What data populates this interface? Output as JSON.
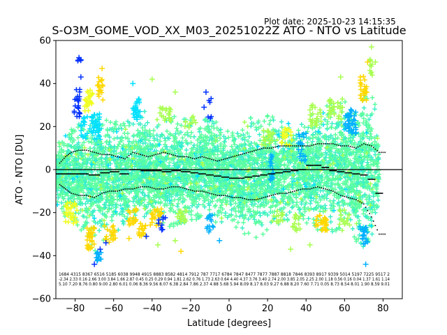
{
  "plot_date": "Plot date: 2025-10-23 14:15:35",
  "chart_data": {
    "type": "scatter",
    "title": "S-O3M_GOME_VOD_XX_M03_20251022Z ATO - NTO vs Latitude",
    "xlabel": "Latitude [degrees]",
    "ylabel": "ATO - NTO [DU]",
    "xlim": [
      -90,
      90
    ],
    "ylim": [
      -60,
      60
    ],
    "xticks": [
      -80,
      -60,
      -40,
      -20,
      0,
      20,
      40,
      60,
      80
    ],
    "yticks": [
      -60,
      -40,
      -20,
      0,
      20,
      40,
      60
    ],
    "xtick_labels": [
      "−80",
      "−60",
      "−40",
      "−20",
      "0",
      "20",
      "40",
      "60",
      "80"
    ],
    "ytick_labels": [
      "−60",
      "−40",
      "−20",
      "0",
      "20",
      "40",
      "60"
    ],
    "zero_line": 0,
    "grid": false,
    "colors": {
      "dense": "#5cffa0",
      "mid": "#3cf0c8",
      "cyan": "#00e0ff",
      "blue_light": "#00b0ff",
      "blue": "#0030ff",
      "yellow": "#f0ff20",
      "gold": "#ffd800",
      "lime": "#a8ff50",
      "mean": "#000000"
    },
    "envelope": [
      {
        "lat": -90,
        "top": 12,
        "bottom": -17
      },
      {
        "lat": -85,
        "top": 17,
        "bottom": -22
      },
      {
        "lat": -80,
        "top": 22,
        "bottom": -26
      },
      {
        "lat": -75,
        "top": 20,
        "bottom": -30
      },
      {
        "lat": -70,
        "top": 26,
        "bottom": -38
      },
      {
        "lat": -65,
        "top": 25,
        "bottom": -35
      },
      {
        "lat": -60,
        "top": 22,
        "bottom": -30
      },
      {
        "lat": -55,
        "top": 24,
        "bottom": -28
      },
      {
        "lat": -50,
        "top": 22,
        "bottom": -25
      },
      {
        "lat": -45,
        "top": 28,
        "bottom": -27
      },
      {
        "lat": -40,
        "top": 24,
        "bottom": -25
      },
      {
        "lat": -35,
        "top": 23,
        "bottom": -26
      },
      {
        "lat": -30,
        "top": 25,
        "bottom": -27
      },
      {
        "lat": -25,
        "top": 24,
        "bottom": -26
      },
      {
        "lat": -20,
        "top": 23,
        "bottom": -24
      },
      {
        "lat": -15,
        "top": 25,
        "bottom": -25
      },
      {
        "lat": -10,
        "top": 24,
        "bottom": -24
      },
      {
        "lat": -5,
        "top": 23,
        "bottom": -25
      },
      {
        "lat": 0,
        "top": 17,
        "bottom": -25
      },
      {
        "lat": 5,
        "top": 22,
        "bottom": -28
      },
      {
        "lat": 10,
        "top": 24,
        "bottom": -32
      },
      {
        "lat": 15,
        "top": 24,
        "bottom": -33
      },
      {
        "lat": 20,
        "top": 26,
        "bottom": -28
      },
      {
        "lat": 25,
        "top": 25,
        "bottom": -28
      },
      {
        "lat": 30,
        "top": 22,
        "bottom": -25
      },
      {
        "lat": 35,
        "top": 20,
        "bottom": -22
      },
      {
        "lat": 40,
        "top": 22,
        "bottom": -25
      },
      {
        "lat": 45,
        "top": 30,
        "bottom": -28
      },
      {
        "lat": 50,
        "top": 32,
        "bottom": -30
      },
      {
        "lat": 55,
        "top": 30,
        "bottom": -30
      },
      {
        "lat": 60,
        "top": 32,
        "bottom": -28
      },
      {
        "lat": 65,
        "top": 28,
        "bottom": -32
      },
      {
        "lat": 70,
        "top": 35,
        "bottom": -38
      },
      {
        "lat": 73,
        "top": 40,
        "bottom": -42
      },
      {
        "lat": 76,
        "top": 30,
        "bottom": -35
      },
      {
        "lat": 78,
        "top": 10,
        "bottom": -10
      }
    ],
    "highlight_clusters": [
      {
        "x": -79,
        "y": 30,
        "w": 3,
        "h": 18,
        "color": "blue",
        "n": 22
      },
      {
        "x": -78,
        "y": 51,
        "w": 2,
        "h": 2,
        "color": "blue",
        "n": 4
      },
      {
        "x": -73,
        "y": 32,
        "w": 4,
        "h": 10,
        "color": "yellow",
        "n": 25
      },
      {
        "x": -67,
        "y": 38,
        "w": 3,
        "h": 12,
        "color": "gold",
        "n": 18
      },
      {
        "x": -72,
        "y": 20,
        "w": 10,
        "h": 12,
        "color": "cyan",
        "n": 60
      },
      {
        "x": -48,
        "y": 28,
        "w": 4,
        "h": 10,
        "color": "cyan",
        "n": 30
      },
      {
        "x": -33,
        "y": 25,
        "w": 6,
        "h": 8,
        "color": "lime",
        "n": 20
      },
      {
        "x": -20,
        "y": 22,
        "w": 6,
        "h": 6,
        "color": "lime",
        "n": 12
      },
      {
        "x": -10,
        "y": 28,
        "w": 2,
        "h": 10,
        "color": "blue",
        "n": 6
      },
      {
        "x": 20,
        "y": 15,
        "w": 6,
        "h": 8,
        "color": "lime",
        "n": 20
      },
      {
        "x": 22,
        "y": 0,
        "w": 2,
        "h": 14,
        "color": "blue_light",
        "n": 15
      },
      {
        "x": 30,
        "y": 15,
        "w": 6,
        "h": 8,
        "color": "yellow",
        "n": 20
      },
      {
        "x": 38,
        "y": 10,
        "w": 4,
        "h": 14,
        "color": "blue_light",
        "n": 20
      },
      {
        "x": 45,
        "y": 25,
        "w": 6,
        "h": 10,
        "color": "lime",
        "n": 30
      },
      {
        "x": 55,
        "y": 28,
        "w": 8,
        "h": 10,
        "color": "lime",
        "n": 30
      },
      {
        "x": 63,
        "y": 22,
        "w": 6,
        "h": 12,
        "color": "blue_light",
        "n": 40
      },
      {
        "x": 70,
        "y": 38,
        "w": 4,
        "h": 12,
        "color": "gold",
        "n": 25
      },
      {
        "x": 73,
        "y": 48,
        "w": 3,
        "h": 10,
        "color": "lime",
        "n": 10
      },
      {
        "x": -82,
        "y": -20,
        "w": 6,
        "h": 10,
        "color": "yellow",
        "n": 30
      },
      {
        "x": -72,
        "y": -32,
        "w": 4,
        "h": 10,
        "color": "gold",
        "n": 30
      },
      {
        "x": -68,
        "y": -40,
        "w": 3,
        "h": 6,
        "color": "blue_light",
        "n": 15
      },
      {
        "x": -62,
        "y": -30,
        "w": 6,
        "h": 8,
        "color": "gold",
        "n": 20
      },
      {
        "x": -50,
        "y": -22,
        "w": 6,
        "h": 8,
        "color": "gold",
        "n": 20
      },
      {
        "x": -45,
        "y": -28,
        "w": 4,
        "h": 6,
        "color": "gold",
        "n": 18
      },
      {
        "x": -38,
        "y": -22,
        "w": 6,
        "h": 8,
        "color": "gold",
        "n": 25
      },
      {
        "x": -35,
        "y": -25,
        "w": 4,
        "h": 6,
        "color": "blue",
        "n": 8
      },
      {
        "x": -25,
        "y": -22,
        "w": 6,
        "h": 6,
        "color": "lime",
        "n": 20
      },
      {
        "x": -10,
        "y": -25,
        "w": 4,
        "h": 8,
        "color": "blue_light",
        "n": 15
      },
      {
        "x": 25,
        "y": -22,
        "w": 6,
        "h": 6,
        "color": "lime",
        "n": 15
      },
      {
        "x": 35,
        "y": -25,
        "w": 4,
        "h": 8,
        "color": "lime",
        "n": 15
      },
      {
        "x": 48,
        "y": -25,
        "w": 6,
        "h": 8,
        "color": "gold",
        "n": 30
      },
      {
        "x": 60,
        "y": -22,
        "w": 6,
        "h": 8,
        "color": "lime",
        "n": 15
      },
      {
        "x": 70,
        "y": -30,
        "w": 4,
        "h": 10,
        "color": "blue_light",
        "n": 20
      }
    ],
    "outliers": [
      {
        "x": -77,
        "y": 51,
        "color": "blue"
      },
      {
        "x": -78,
        "y": 52,
        "color": "blue"
      },
      {
        "x": -77,
        "y": 43,
        "color": "blue"
      },
      {
        "x": -66,
        "y": 47,
        "color": "gold"
      },
      {
        "x": -50,
        "y": 40,
        "color": "cyan"
      },
      {
        "x": -40,
        "y": 42,
        "color": "lime"
      },
      {
        "x": -28,
        "y": 36,
        "color": "lime"
      },
      {
        "x": -12,
        "y": 36,
        "color": "blue"
      },
      {
        "x": -13,
        "y": 29,
        "color": "blue"
      },
      {
        "x": 58,
        "y": 43,
        "color": "lime"
      },
      {
        "x": 74,
        "y": 57,
        "color": "lime"
      },
      {
        "x": 76,
        "y": 50,
        "color": "lime"
      },
      {
        "x": 72,
        "y": 50,
        "color": "gold"
      },
      {
        "x": -70,
        "y": -44,
        "color": "blue"
      },
      {
        "x": -52,
        "y": -32,
        "color": "gold"
      },
      {
        "x": -43,
        "y": -31,
        "color": "blue"
      },
      {
        "x": -37,
        "y": -35,
        "color": "lime"
      },
      {
        "x": -35,
        "y": -28,
        "color": "blue"
      },
      {
        "x": -28,
        "y": -33,
        "color": "lime"
      },
      {
        "x": -25,
        "y": -38,
        "color": "gold"
      },
      {
        "x": -5,
        "y": -33,
        "color": "blue_light"
      },
      {
        "x": 32,
        "y": -37,
        "color": "lime"
      },
      {
        "x": 42,
        "y": -35,
        "color": "lime"
      },
      {
        "x": 71,
        "y": -44,
        "color": "blue_light"
      },
      {
        "x": -67,
        "y": -37,
        "color": "blue"
      },
      {
        "x": -64,
        "y": -34,
        "color": "blue"
      }
    ],
    "mean_segments": [
      {
        "x0": -90,
        "x1": -80,
        "y": -2
      },
      {
        "x0": -80,
        "x1": -73,
        "y": -2
      },
      {
        "x0": -73,
        "x1": -67,
        "y": -2.5
      },
      {
        "x0": -67,
        "x1": -62,
        "y": -1.5
      },
      {
        "x0": -62,
        "x1": -57,
        "y": -1
      },
      {
        "x0": -57,
        "x1": -52,
        "y": -2
      },
      {
        "x0": -52,
        "x1": -46,
        "y": 0
      },
      {
        "x0": -46,
        "x1": -40,
        "y": -0.5
      },
      {
        "x0": -40,
        "x1": -35,
        "y": -0.5
      },
      {
        "x0": -35,
        "x1": -30,
        "y": -1
      },
      {
        "x0": -30,
        "x1": -25,
        "y": -0.5
      },
      {
        "x0": -25,
        "x1": -20,
        "y": -1
      },
      {
        "x0": -20,
        "x1": -16,
        "y": -1.5
      },
      {
        "x0": -16,
        "x1": -12,
        "y": -2
      },
      {
        "x0": -12,
        "x1": -8,
        "y": -2.5
      },
      {
        "x0": -8,
        "x1": -4,
        "y": -3
      },
      {
        "x0": -4,
        "x1": 0,
        "y": -3.5
      },
      {
        "x0": 0,
        "x1": 4,
        "y": -4
      },
      {
        "x0": 4,
        "x1": 8,
        "y": -4
      },
      {
        "x0": 8,
        "x1": 12,
        "y": -3.5
      },
      {
        "x0": 12,
        "x1": 16,
        "y": -3
      },
      {
        "x0": 16,
        "x1": 20,
        "y": -2.5
      },
      {
        "x0": 20,
        "x1": 24,
        "y": -2
      },
      {
        "x0": 24,
        "x1": 28,
        "y": -1.5
      },
      {
        "x0": 28,
        "x1": 32,
        "y": -1
      },
      {
        "x0": 32,
        "x1": 36,
        "y": -0.5
      },
      {
        "x0": 36,
        "x1": 40,
        "y": 0
      },
      {
        "x0": 40,
        "x1": 44,
        "y": 2
      },
      {
        "x0": 44,
        "x1": 48,
        "y": 2
      },
      {
        "x0": 48,
        "x1": 52,
        "y": 1
      },
      {
        "x0": 52,
        "x1": 56,
        "y": -0.5
      },
      {
        "x0": 56,
        "x1": 60,
        "y": -1
      },
      {
        "x0": 60,
        "x1": 64,
        "y": -1.5
      },
      {
        "x0": 64,
        "x1": 68,
        "y": -2
      },
      {
        "x0": 68,
        "x1": 72,
        "y": -2.5
      },
      {
        "x0": 72,
        "x1": 76,
        "y": -4.5
      },
      {
        "x0": 76,
        "x1": 80,
        "y": -11
      }
    ],
    "std_upper": [
      {
        "x": -88,
        "y": 3
      },
      {
        "x": -85,
        "y": 6
      },
      {
        "x": -82,
        "y": 8
      },
      {
        "x": -78,
        "y": 9
      },
      {
        "x": -74,
        "y": 9
      },
      {
        "x": -70,
        "y": 8
      },
      {
        "x": -66,
        "y": 7
      },
      {
        "x": -62,
        "y": 7
      },
      {
        "x": -58,
        "y": 6
      },
      {
        "x": -54,
        "y": 5
      },
      {
        "x": -50,
        "y": 8
      },
      {
        "x": -46,
        "y": 7
      },
      {
        "x": -42,
        "y": 6
      },
      {
        "x": -38,
        "y": 7
      },
      {
        "x": -34,
        "y": 8
      },
      {
        "x": -30,
        "y": 7
      },
      {
        "x": -26,
        "y": 6
      },
      {
        "x": -22,
        "y": 6
      },
      {
        "x": -18,
        "y": 5
      },
      {
        "x": -14,
        "y": 6
      },
      {
        "x": -10,
        "y": 5
      },
      {
        "x": -6,
        "y": 4
      },
      {
        "x": -2,
        "y": 5
      },
      {
        "x": 2,
        "y": 6
      },
      {
        "x": 6,
        "y": 7
      },
      {
        "x": 10,
        "y": 8
      },
      {
        "x": 14,
        "y": 9
      },
      {
        "x": 18,
        "y": 10
      },
      {
        "x": 22,
        "y": 10
      },
      {
        "x": 26,
        "y": 11
      },
      {
        "x": 30,
        "y": 11
      },
      {
        "x": 34,
        "y": 11
      },
      {
        "x": 38,
        "y": 11
      },
      {
        "x": 42,
        "y": 11
      },
      {
        "x": 46,
        "y": 12
      },
      {
        "x": 50,
        "y": 12
      },
      {
        "x": 54,
        "y": 12
      },
      {
        "x": 58,
        "y": 11
      },
      {
        "x": 62,
        "y": 11
      },
      {
        "x": 66,
        "y": 10
      },
      {
        "x": 70,
        "y": 12
      },
      {
        "x": 74,
        "y": 11
      },
      {
        "x": 78,
        "y": 8
      }
    ],
    "std_lower": [
      {
        "x": -88,
        "y": -7
      },
      {
        "x": -85,
        "y": -9
      },
      {
        "x": -82,
        "y": -11
      },
      {
        "x": -78,
        "y": -12
      },
      {
        "x": -74,
        "y": -12
      },
      {
        "x": -70,
        "y": -13
      },
      {
        "x": -66,
        "y": -11
      },
      {
        "x": -62,
        "y": -10
      },
      {
        "x": -58,
        "y": -10
      },
      {
        "x": -54,
        "y": -9
      },
      {
        "x": -50,
        "y": -9
      },
      {
        "x": -46,
        "y": -8
      },
      {
        "x": -42,
        "y": -8
      },
      {
        "x": -38,
        "y": -9
      },
      {
        "x": -34,
        "y": -9
      },
      {
        "x": -30,
        "y": -8
      },
      {
        "x": -26,
        "y": -8
      },
      {
        "x": -22,
        "y": -9
      },
      {
        "x": -18,
        "y": -10
      },
      {
        "x": -14,
        "y": -10
      },
      {
        "x": -10,
        "y": -11
      },
      {
        "x": -6,
        "y": -12
      },
      {
        "x": -2,
        "y": -12
      },
      {
        "x": 2,
        "y": -13
      },
      {
        "x": 6,
        "y": -13
      },
      {
        "x": 10,
        "y": -14
      },
      {
        "x": 14,
        "y": -14
      },
      {
        "x": 18,
        "y": -13
      },
      {
        "x": 22,
        "y": -12
      },
      {
        "x": 26,
        "y": -11
      },
      {
        "x": 30,
        "y": -11
      },
      {
        "x": 34,
        "y": -10
      },
      {
        "x": 38,
        "y": -9
      },
      {
        "x": 42,
        "y": -9
      },
      {
        "x": 46,
        "y": -8
      },
      {
        "x": 50,
        "y": -9
      },
      {
        "x": 54,
        "y": -10
      },
      {
        "x": 58,
        "y": -12
      },
      {
        "x": 62,
        "y": -13
      },
      {
        "x": 66,
        "y": -14
      },
      {
        "x": 70,
        "y": -16
      },
      {
        "x": 74,
        "y": -22
      },
      {
        "x": 78,
        "y": -30
      }
    ],
    "stats_rows": [
      "1684 4315 8367 6516 5185 6038 9948 4915 8883 8582 4814 7912 787 7717 6784 7847 8477 7877 7887 8818 7846 8393 8917 9339 5014 5197 7225 9517 2",
      "-2.34 2.33 0.16 2.66 3.00 3.84 1.66 2.87 0.45 0.25 0.29 0.94 1.81 2.62 0.76 1.73 2.63 0.64 4.40 4.37 3.76 3.40 2.74 2.00 3.85 2.05 2.25 2.00 1.18 0.56 0.16 0.04 1.37 1.61 1.14",
      "5.10 7.20 8.76 0.80 9.00 2.80 6.01 0.06 8.36 9.56 8.07 6.38 2.84 7.86 2.37 4.88 5.68 5.94 8.09 8.17 8.03 9.27 6.88 8.20 7.60 7.71 0.05 8.73 8.54 8.01 1.90 8.59 9.01"
    ]
  }
}
